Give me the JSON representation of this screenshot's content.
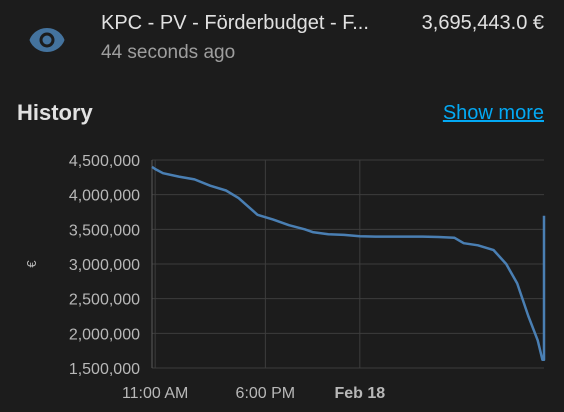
{
  "entity": {
    "name": "KPC - PV - Förderbudget - F...",
    "last_changed": "44 seconds ago",
    "state": "3,695,443.0 €",
    "icon": "eye-icon"
  },
  "history": {
    "title": "History",
    "show_more": "Show more"
  },
  "colors": {
    "background": "#1c1c1c",
    "accent": "#03a9f4",
    "icon": "#44739e",
    "series": "#4a7fb3"
  },
  "chart_data": {
    "type": "line",
    "ylabel": "€",
    "ylim": [
      1500000,
      4500000
    ],
    "y_ticks": [
      "4,500,000",
      "4,000,000",
      "3,500,000",
      "3,000,000",
      "2,500,000",
      "2,000,000",
      "1,500,000"
    ],
    "x_ticks": [
      {
        "label": "11:00 AM",
        "bold": false,
        "hour": 11
      },
      {
        "label": "6:00 PM",
        "bold": false,
        "hour": 18
      },
      {
        "label": "Feb 18",
        "bold": true,
        "hour": 24
      }
    ],
    "grid": true,
    "series": [
      {
        "x": [
          10.8,
          11.0,
          11.5,
          12.5,
          13.5,
          14.5,
          15.5,
          16.3,
          16.8,
          17.5,
          18.5,
          19.5,
          20.5,
          21.0,
          22.0,
          23.0,
          24.0,
          25.0,
          26.0,
          27.0,
          28.0,
          29.0,
          30.0,
          30.6,
          31.5,
          32.5,
          33.3,
          34.0,
          34.7,
          35.3,
          35.6,
          35.7,
          35.7
        ],
        "y": [
          4400000,
          4370000,
          4310000,
          4260000,
          4220000,
          4130000,
          4060000,
          3950000,
          3850000,
          3710000,
          3640000,
          3560000,
          3500000,
          3460000,
          3430000,
          3420000,
          3400000,
          3395000,
          3395000,
          3395000,
          3395000,
          3390000,
          3380000,
          3300000,
          3270000,
          3200000,
          3000000,
          2720000,
          2250000,
          1900000,
          1620000,
          1620000,
          3695443
        ]
      }
    ]
  }
}
